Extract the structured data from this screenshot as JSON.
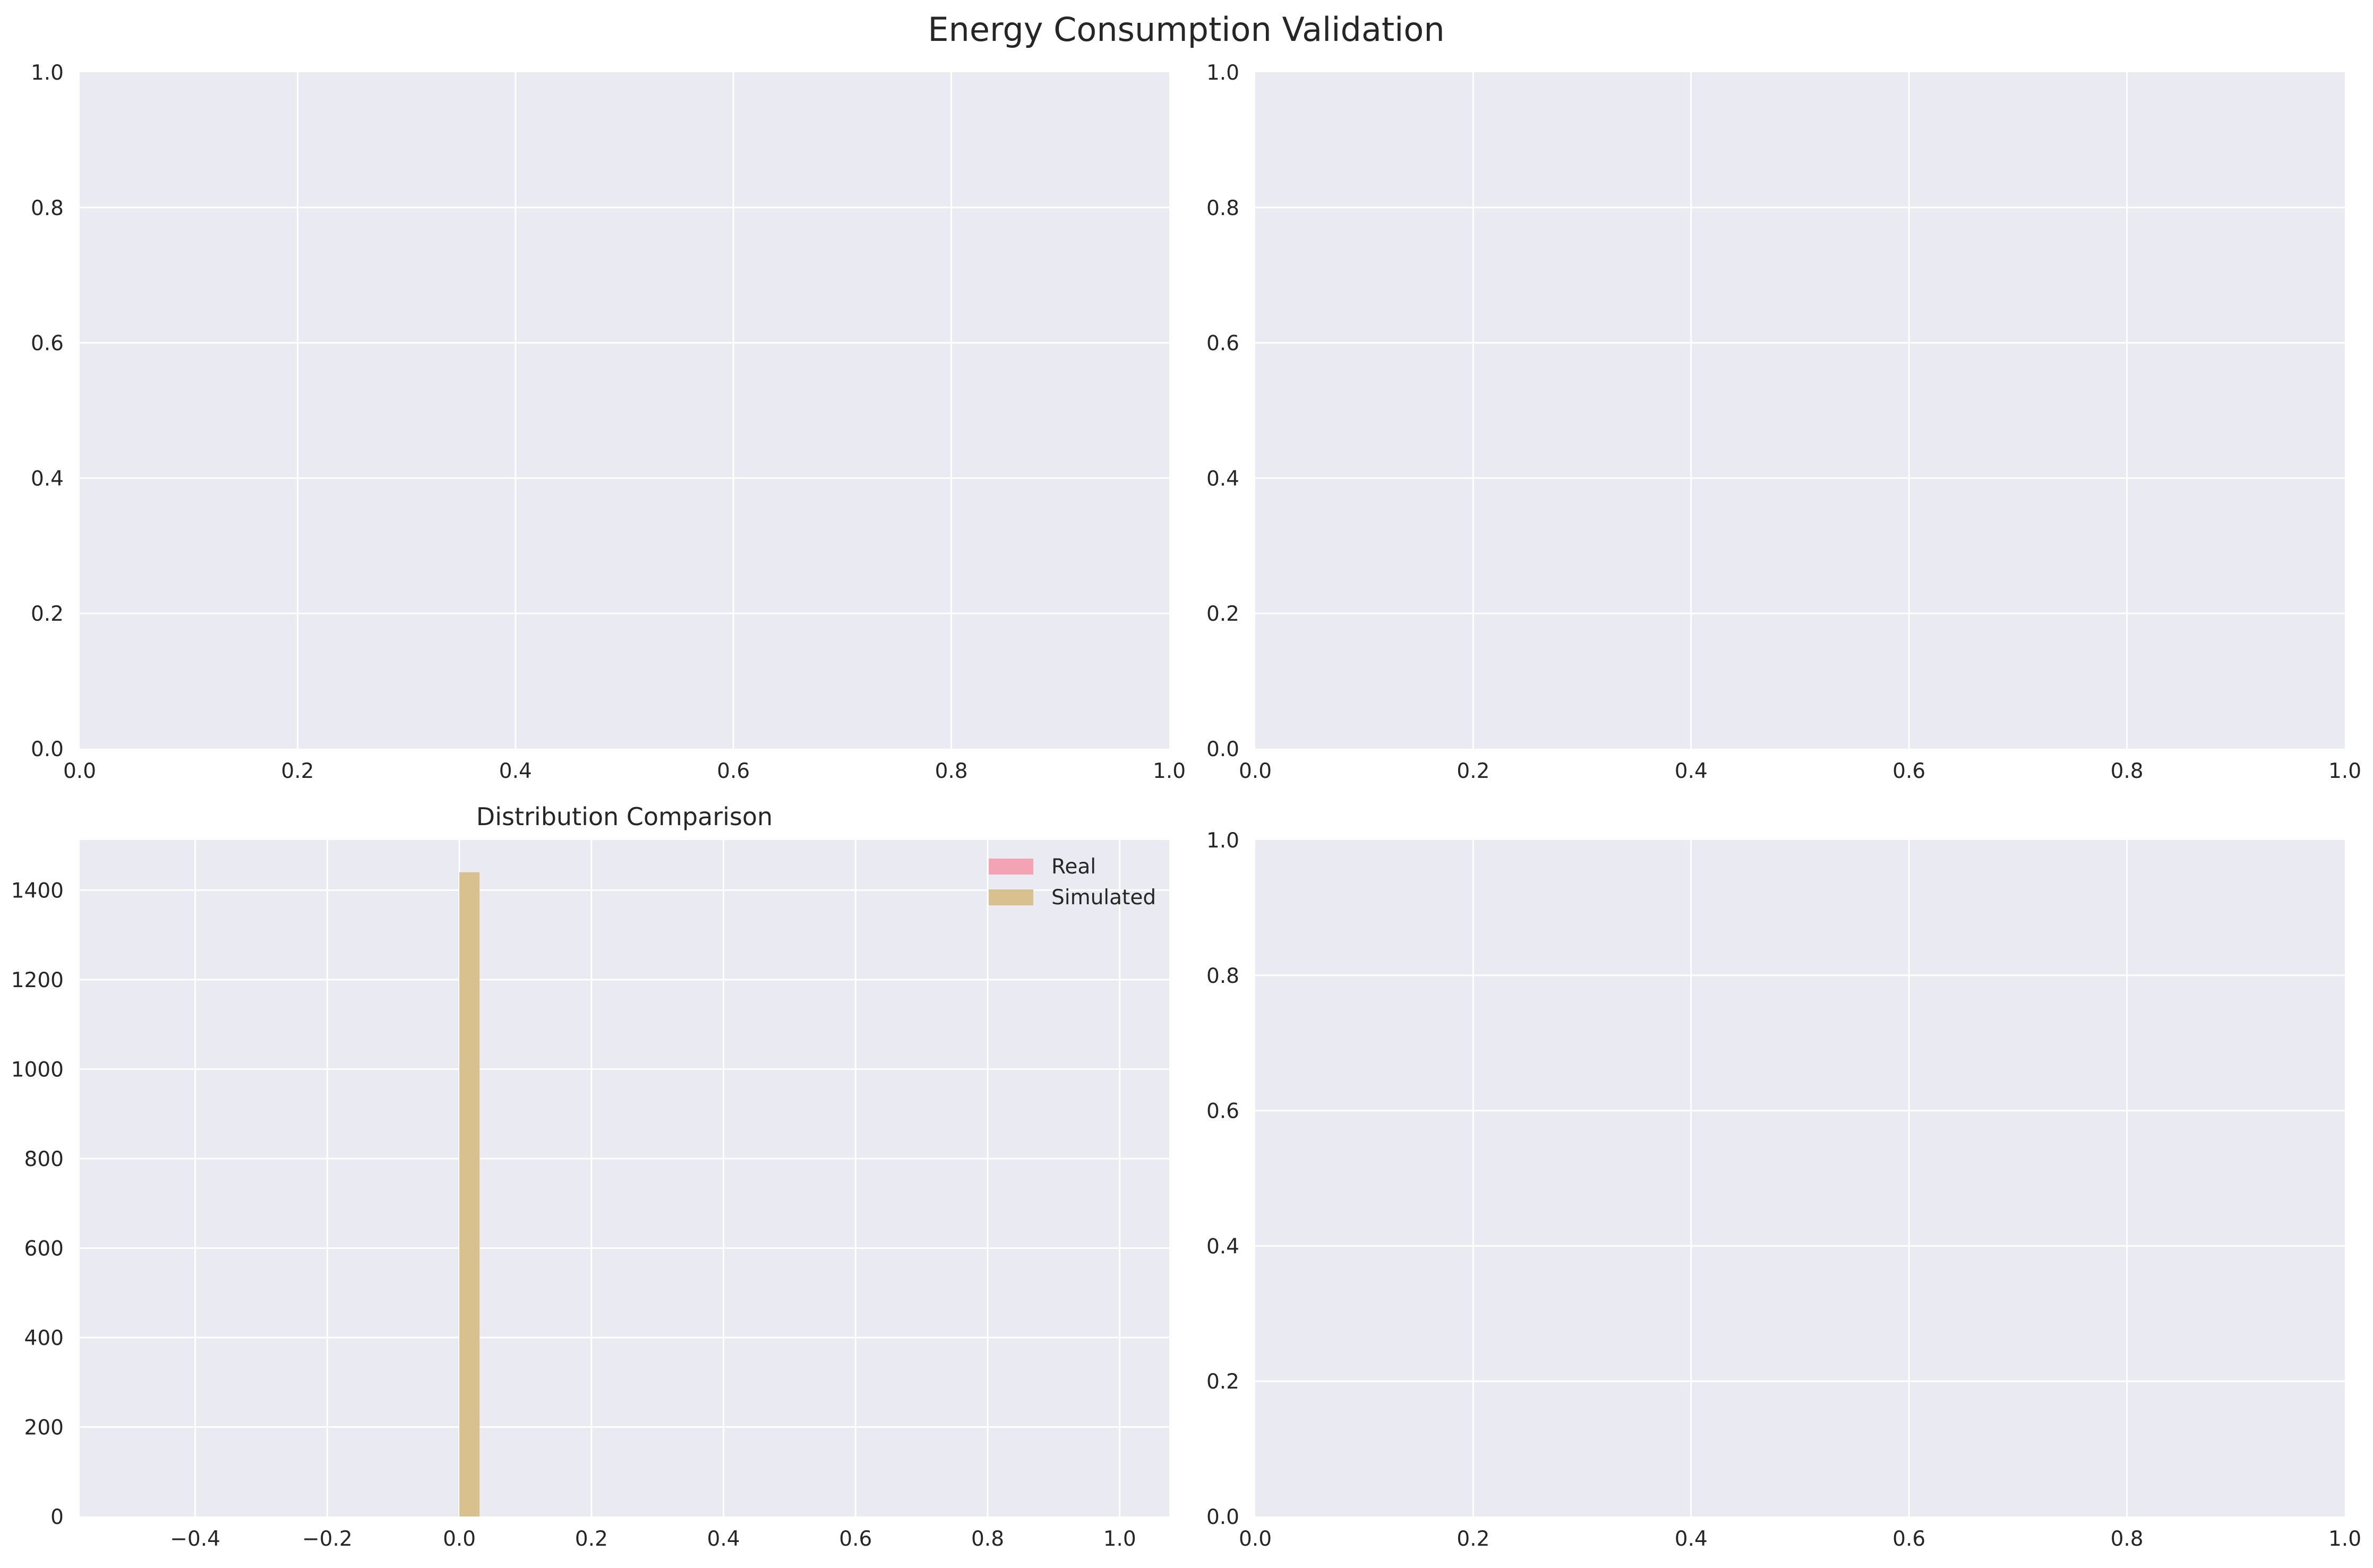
{
  "figure": {
    "title": "Energy Consumption Validation",
    "background": "#ffffff",
    "axes_facecolor": "#eaeaf2",
    "grid_color": "#ffffff",
    "text_color": "#262626"
  },
  "chart_data": [
    {
      "type": "bar",
      "position": "top-left",
      "title": "",
      "xlabel": "",
      "ylabel": "",
      "xlim": [
        0.0,
        1.0
      ],
      "ylim": [
        0.0,
        1.0
      ],
      "xticks": [
        "0.0",
        "0.2",
        "0.4",
        "0.6",
        "0.8",
        "1.0"
      ],
      "yticks": [
        "0.0",
        "0.2",
        "0.4",
        "0.6",
        "0.8",
        "1.0"
      ],
      "grid": true,
      "series": []
    },
    {
      "type": "bar",
      "position": "top-right",
      "title": "",
      "xlabel": "",
      "ylabel": "",
      "xlim": [
        0.0,
        1.0
      ],
      "ylim": [
        0.0,
        1.0
      ],
      "xticks": [
        "0.0",
        "0.2",
        "0.4",
        "0.6",
        "0.8",
        "1.0"
      ],
      "yticks": [
        "0.0",
        "0.2",
        "0.4",
        "0.6",
        "0.8",
        "1.0"
      ],
      "grid": true,
      "series": []
    },
    {
      "type": "bar",
      "subtype": "histogram",
      "position": "bottom-left",
      "title": "Distribution Comparison",
      "xlabel": "",
      "ylabel": "",
      "xlim": [
        -0.575,
        1.075
      ],
      "ylim": [
        0,
        1512
      ],
      "xticks": [
        "−0.4",
        "−0.2",
        "0.0",
        "0.2",
        "0.4",
        "0.6",
        "0.8",
        "1.0"
      ],
      "xtick_values": [
        -0.4,
        -0.2,
        0.0,
        0.2,
        0.4,
        0.6,
        0.8,
        1.0
      ],
      "yticks": [
        "0",
        "200",
        "400",
        "600",
        "800",
        "1000",
        "1200",
        "1400"
      ],
      "ytick_values": [
        0,
        200,
        400,
        600,
        800,
        1000,
        1200,
        1400
      ],
      "grid": true,
      "legend": {
        "placement": "top-right",
        "entries": [
          "Real",
          "Simulated"
        ]
      },
      "series": [
        {
          "name": "Real",
          "color": "#f4a3b4",
          "bins": [
            {
              "x0": 0.0,
              "x1": 0.033,
              "count": 0
            }
          ]
        },
        {
          "name": "Simulated",
          "color": "#d8c08f",
          "bins": [
            {
              "x0": 0.0,
              "x1": 0.033,
              "count": 1440
            }
          ]
        }
      ]
    },
    {
      "type": "bar",
      "position": "bottom-right",
      "title": "",
      "xlabel": "",
      "ylabel": "",
      "xlim": [
        0.0,
        1.0
      ],
      "ylim": [
        0.0,
        1.0
      ],
      "xticks": [
        "0.0",
        "0.2",
        "0.4",
        "0.6",
        "0.8",
        "1.0"
      ],
      "yticks": [
        "0.0",
        "0.2",
        "0.4",
        "0.6",
        "0.8",
        "1.0"
      ],
      "grid": true,
      "series": []
    }
  ]
}
